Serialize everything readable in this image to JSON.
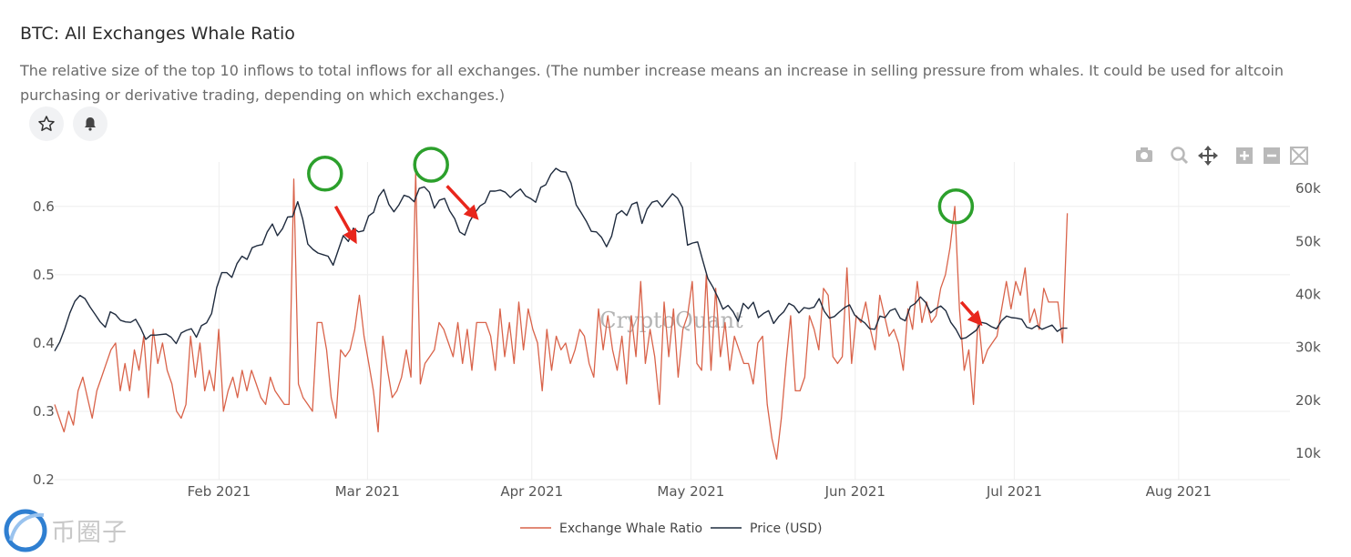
{
  "header": {
    "title": "BTC: All Exchanges Whale Ratio",
    "description": "The relative size of the top 10 inflows to total inflows for all exchanges. (The number increase means an increase in selling pressure from whales. It could be used for altcoin purchasing or derivative trading, depending on which exchanges.)"
  },
  "actions": {
    "favorite_icon": "star-icon",
    "alert_icon": "bell-icon"
  },
  "toolbar": {
    "icons": [
      "camera-icon",
      "zoom-icon",
      "pan-icon",
      "zoom-in-icon",
      "zoom-out-icon",
      "autoscale-icon"
    ]
  },
  "watermark": "CryptoQuant",
  "logo_text": "币圈子",
  "colors": {
    "whale": "#d9634a",
    "price": "#1f2b3e",
    "marker_circle": "#2ca02c",
    "arrow": "#e8261c"
  },
  "chart_data": {
    "type": "line",
    "x_range": [
      "2021-01-01",
      "2021-08-22"
    ],
    "x_ticks": [
      "Feb 2021",
      "Mar 2021",
      "Apr 2021",
      "May 2021",
      "Jun 2021",
      "Jul 2021",
      "Aug 2021"
    ],
    "y_left": {
      "range": [
        0.2,
        0.665
      ],
      "ticks": [
        "0.2",
        "0.3",
        "0.4",
        "0.5",
        "0.6"
      ]
    },
    "y_right": {
      "range": [
        5000,
        65000
      ],
      "ticks": [
        "10k",
        "20k",
        "30k",
        "40k",
        "50k",
        "60k"
      ]
    },
    "grid": true,
    "legend_position": "bottom",
    "series": [
      {
        "name": "Exchange Whale Ratio",
        "axis": "left",
        "x_start": "2021-01-01",
        "x_end": "2021-07-11",
        "values": [
          0.31,
          0.29,
          0.27,
          0.3,
          0.28,
          0.33,
          0.35,
          0.32,
          0.29,
          0.33,
          0.35,
          0.37,
          0.39,
          0.4,
          0.33,
          0.37,
          0.33,
          0.39,
          0.36,
          0.41,
          0.32,
          0.42,
          0.37,
          0.4,
          0.36,
          0.34,
          0.3,
          0.29,
          0.31,
          0.41,
          0.35,
          0.4,
          0.33,
          0.36,
          0.33,
          0.42,
          0.3,
          0.33,
          0.35,
          0.32,
          0.36,
          0.33,
          0.36,
          0.34,
          0.32,
          0.31,
          0.35,
          0.33,
          0.32,
          0.31,
          0.31,
          0.64,
          0.34,
          0.32,
          0.31,
          0.3,
          0.43,
          0.43,
          0.39,
          0.32,
          0.29,
          0.39,
          0.38,
          0.39,
          0.42,
          0.47,
          0.41,
          0.37,
          0.33,
          0.27,
          0.41,
          0.36,
          0.32,
          0.33,
          0.35,
          0.39,
          0.35,
          0.65,
          0.34,
          0.37,
          0.38,
          0.39,
          0.43,
          0.42,
          0.4,
          0.38,
          0.43,
          0.37,
          0.42,
          0.36,
          0.43,
          0.43,
          0.43,
          0.41,
          0.36,
          0.45,
          0.38,
          0.43,
          0.37,
          0.46,
          0.39,
          0.45,
          0.42,
          0.4,
          0.33,
          0.42,
          0.36,
          0.41,
          0.39,
          0.4,
          0.37,
          0.39,
          0.42,
          0.41,
          0.37,
          0.35,
          0.45,
          0.39,
          0.44,
          0.39,
          0.36,
          0.41,
          0.34,
          0.44,
          0.38,
          0.49,
          0.37,
          0.42,
          0.38,
          0.31,
          0.46,
          0.38,
          0.45,
          0.35,
          0.42,
          0.44,
          0.49,
          0.37,
          0.36,
          0.5,
          0.36,
          0.48,
          0.38,
          0.43,
          0.36,
          0.41,
          0.39,
          0.37,
          0.37,
          0.34,
          0.4,
          0.41,
          0.31,
          0.26,
          0.23,
          0.29,
          0.37,
          0.44,
          0.33,
          0.33,
          0.35,
          0.44,
          0.42,
          0.39,
          0.48,
          0.47,
          0.38,
          0.37,
          0.38,
          0.51,
          0.37,
          0.44,
          0.43,
          0.46,
          0.42,
          0.39,
          0.47,
          0.44,
          0.41,
          0.42,
          0.4,
          0.36,
          0.45,
          0.42,
          0.49,
          0.43,
          0.46,
          0.43,
          0.44,
          0.48,
          0.5,
          0.54,
          0.6,
          0.45,
          0.36,
          0.39,
          0.31,
          0.44,
          0.37,
          0.39,
          0.4,
          0.41,
          0.45,
          0.49,
          0.45,
          0.49,
          0.47,
          0.51,
          0.43,
          0.45,
          0.42,
          0.48,
          0.46,
          0.46,
          0.46,
          0.4,
          0.59
        ]
      },
      {
        "name": "Price (USD)",
        "axis": "right",
        "x_start": "2021-01-01",
        "x_end": "2021-07-11",
        "values": [
          29300,
          31000,
          33500,
          36500,
          38700,
          39800,
          39200,
          37600,
          36200,
          34800,
          33800,
          36700,
          36200,
          35100,
          34800,
          34700,
          35300,
          33600,
          31500,
          32300,
          32300,
          32400,
          32500,
          31900,
          30700,
          32700,
          33200,
          33500,
          31900,
          34100,
          34600,
          36400,
          41300,
          44100,
          44100,
          43200,
          45800,
          47200,
          46600,
          48800,
          49200,
          49400,
          51800,
          53300,
          51100,
          52400,
          54600,
          54700,
          57500,
          54200,
          49500,
          48500,
          47800,
          47500,
          47200,
          45500,
          48300,
          51100,
          50000,
          52500,
          51800,
          52000,
          54800,
          55500,
          58500,
          59800,
          57000,
          55600,
          56900,
          58700,
          58400,
          57500,
          60000,
          60300,
          59300,
          56300,
          57800,
          58100,
          55800,
          54300,
          51800,
          51200,
          53800,
          55400,
          56700,
          57300,
          59500,
          59500,
          59700,
          59300,
          58300,
          59200,
          59900,
          58600,
          58100,
          57400,
          60200,
          60700,
          62700,
          63800,
          63200,
          63100,
          61000,
          56900,
          55400,
          53800,
          51900,
          51800,
          50800,
          49000,
          51000,
          55100,
          55800,
          54900,
          57000,
          57400,
          53400,
          56100,
          57400,
          57700,
          56500,
          57800,
          59000,
          58200,
          56400,
          49300,
          49700,
          49900,
          46400,
          43000,
          41400,
          39400,
          37200,
          37900,
          36700,
          34900,
          38300,
          37300,
          38500,
          35600,
          36400,
          36900,
          34500,
          35800,
          36700,
          38300,
          37800,
          36500,
          37500,
          37300,
          37600,
          39200,
          36800,
          35500,
          35800,
          36700,
          37500,
          38000,
          36100,
          35300,
          34600,
          33500,
          33400,
          35900,
          35600,
          36900,
          37300,
          35500,
          35000,
          37700,
          38300,
          39500,
          38500,
          36500,
          37300,
          37800,
          36900,
          34700,
          33400,
          31600,
          31800,
          32500,
          33200,
          34700,
          34500,
          33900,
          33500,
          35000,
          35900,
          35600,
          35500,
          35300,
          33800,
          33500,
          34100,
          33400,
          33800,
          34200,
          33000,
          33600,
          33600
        ]
      }
    ],
    "annotations": [
      {
        "shape": "circle",
        "x": "2021-02-21",
        "y": 0.648
      },
      {
        "shape": "circle",
        "x": "2021-03-13",
        "y": 0.661
      },
      {
        "shape": "circle",
        "x": "2021-06-20",
        "y": 0.6
      },
      {
        "shape": "arrow",
        "from": [
          "2021-02-23",
          0.6
        ],
        "to": [
          "2021-02-27",
          0.545
        ]
      },
      {
        "shape": "arrow",
        "from": [
          "2021-03-16",
          0.63
        ],
        "to": [
          "2021-03-22",
          0.58
        ]
      },
      {
        "shape": "arrow",
        "from": [
          "2021-06-21",
          0.46
        ],
        "to": [
          "2021-06-25",
          0.425
        ]
      }
    ]
  }
}
